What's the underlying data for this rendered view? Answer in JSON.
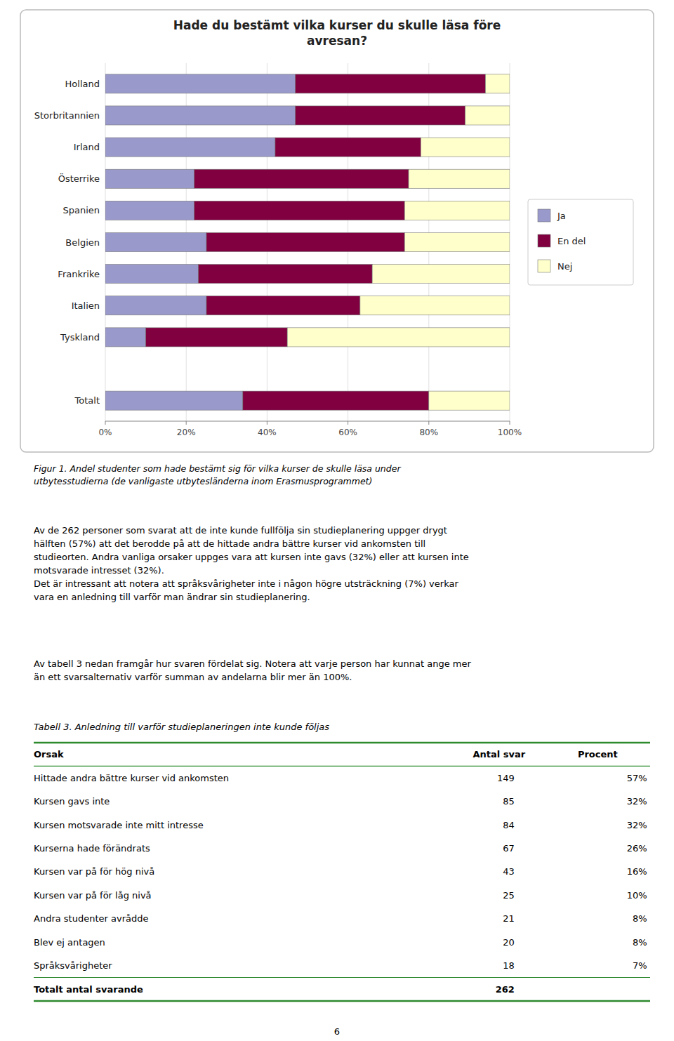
{
  "chart_data": {
    "type": "bar",
    "orientation": "horizontal",
    "stacked": true,
    "title": "Hade du bestämt vilka kurser du skulle läsa före\navresan?",
    "categories": [
      "Totalt",
      null,
      "Tyskland",
      "Italien",
      "Frankrike",
      "Belgien",
      "Spanien",
      "Österrike",
      "Irland",
      "Storbritannien",
      "Holland"
    ],
    "series": [
      {
        "name": "Ja",
        "color": "#9999cc",
        "values": [
          34,
          0,
          10,
          25,
          23,
          25,
          22,
          22,
          42,
          47,
          47
        ]
      },
      {
        "name": "En del",
        "color": "#800040",
        "values": [
          46,
          0,
          35,
          38,
          43,
          49,
          52,
          53,
          36,
          42,
          47
        ]
      },
      {
        "name": "Nej",
        "color": "#ffffcc",
        "values": [
          20,
          0,
          55,
          37,
          34,
          26,
          26,
          25,
          22,
          11,
          6
        ]
      }
    ],
    "xlim": [
      0,
      100
    ],
    "xticks": [
      {
        "value": 0,
        "label": "0%"
      },
      {
        "value": 20,
        "label": "20%"
      },
      {
        "value": 40,
        "label": "40%"
      },
      {
        "value": 60,
        "label": "60%"
      },
      {
        "value": 80,
        "label": "80%"
      },
      {
        "value": 100,
        "label": "100%"
      }
    ],
    "grid": true,
    "legend": "right"
  },
  "page_text": {
    "caption": "Figur 1. Andel studenter som hade bestämt sig för vilka kurser de skulle läsa under\nutbytesstudierna (de vanligaste utbytesländerna inom Erasmusprogrammet)",
    "paragraphs": [
      "Av de 262 personer som svarat att de inte kunde fullfölja sin studieplanering uppger drygt\nhälften (57%) att det berodde på att de hittade andra bättre kurser vid ankomsten till\nstudieorten. Andra vanliga orsaker uppges vara att kursen inte gavs (32%) eller att kursen inte\nmotsvarade intresset (32%).\nDet är intressant att notera att språksvårigheter inte i någon högre utsträckning (7%) verkar\nvara en anledning till varför man ändrar sin studieplanering.",
      "Av tabell 3 nedan framgår hur svaren fördelat sig. Notera att varje person har kunnat ange mer\nän ett svarsalternativ varför summan av andelarna blir mer än 100%."
    ],
    "table": {
      "title": "Tabell 3. Anledning till varför studieplaneringen inte kunde följas",
      "rule_color": "#2d8a2d",
      "headers": [
        "Orsak",
        "Antal svar",
        "Procent"
      ],
      "rows": [
        [
          "Hittade andra bättre kurser vid ankomsten",
          "149",
          "57%"
        ],
        [
          "Kursen gavs inte",
          "85",
          "32%"
        ],
        [
          "Kursen motsvarade inte mitt intresse",
          "84",
          "32%"
        ],
        [
          "Kurserna hade förändrats",
          "67",
          "26%"
        ],
        [
          "Kursen var på för hög nivå",
          "43",
          "16%"
        ],
        [
          "Kursen var på för låg nivå",
          "25",
          "10%"
        ],
        [
          "Andra studenter avrådde",
          "21",
          "8%"
        ],
        [
          "Blev ej antagen",
          "20",
          "8%"
        ],
        [
          "Språksvårigheter",
          "18",
          "7%"
        ],
        [
          "Totalt antal svarande",
          "262",
          null
        ]
      ]
    },
    "page_number": "6"
  }
}
